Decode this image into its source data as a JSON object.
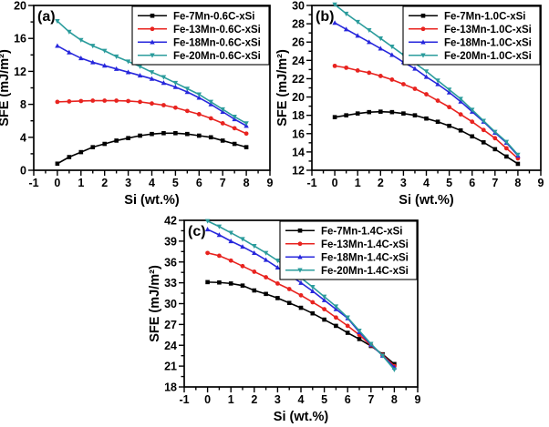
{
  "figure": {
    "background": "#ffffff",
    "description_labels": {
      "xlabel": "Si (wt.%)",
      "ylabel": "SFE (mJ/m²)"
    }
  },
  "colors": {
    "series1": "#000000",
    "series2": "#e8231f",
    "series3": "#2727dc",
    "series4": "#2b9c9c"
  },
  "chart_data": [
    {
      "type": "line",
      "panel_label": "(a)",
      "xlabel": "Si (wt.%)",
      "ylabel": "SFE (mJ/m²)",
      "xlim": [
        -1,
        9
      ],
      "ylim": [
        0,
        20
      ],
      "xtick_step": 1,
      "xminor_step": 0.5,
      "ytick_step": 4,
      "yminor_step": 2,
      "grid": false,
      "legend_position": "top-right",
      "x": [
        0,
        0.5,
        1,
        1.5,
        2,
        2.5,
        3,
        3.5,
        4,
        4.5,
        5,
        5.5,
        6,
        6.5,
        7,
        7.5,
        8
      ],
      "series": [
        {
          "name": "Fe-7Mn-0.6C-xSi",
          "color": "#000000",
          "marker": "square",
          "values": [
            0.8,
            1.6,
            2.2,
            2.8,
            3.2,
            3.6,
            3.9,
            4.2,
            4.4,
            4.5,
            4.5,
            4.4,
            4.2,
            4.0,
            3.6,
            3.2,
            2.8
          ]
        },
        {
          "name": "Fe-13Mn-0.6C-xSi",
          "color": "#e8231f",
          "marker": "circle",
          "values": [
            8.3,
            8.35,
            8.4,
            8.45,
            8.45,
            8.45,
            8.4,
            8.3,
            8.1,
            7.9,
            7.6,
            7.2,
            6.8,
            6.3,
            5.7,
            5.1,
            4.45
          ]
        },
        {
          "name": "Fe-18Mn-0.6C-xSi",
          "color": "#2727dc",
          "marker": "triangle-up",
          "values": [
            15.1,
            14.3,
            13.6,
            13.1,
            12.7,
            12.3,
            11.9,
            11.5,
            11.1,
            10.6,
            10.1,
            9.5,
            8.8,
            8.0,
            7.1,
            6.2,
            5.4
          ]
        },
        {
          "name": "Fe-20Mn-0.6C-xSi",
          "color": "#2b9c9c",
          "marker": "triangle-down",
          "values": [
            18.1,
            16.8,
            15.8,
            15.1,
            14.5,
            13.8,
            13.2,
            12.6,
            11.9,
            11.3,
            10.6,
            9.9,
            9.2,
            8.3,
            7.4,
            6.5,
            5.7
          ]
        }
      ]
    },
    {
      "type": "line",
      "panel_label": "(b)",
      "xlabel": "Si (wt.%)",
      "ylabel": "SFE (mJ/m²)",
      "xlim": [
        -1,
        9
      ],
      "ylim": [
        12,
        30
      ],
      "xtick_step": 1,
      "xminor_step": 0.5,
      "ytick_step": 2,
      "yminor_step": 1,
      "grid": false,
      "legend_position": "top-right",
      "x": [
        0,
        0.5,
        1,
        1.5,
        2,
        2.5,
        3,
        3.5,
        4,
        4.5,
        5,
        5.5,
        6,
        6.5,
        7,
        7.5,
        8
      ],
      "series": [
        {
          "name": "Fe-7Mn-1.0C-xSi",
          "color": "#000000",
          "marker": "square",
          "values": [
            17.8,
            18.0,
            18.2,
            18.35,
            18.4,
            18.35,
            18.2,
            18.0,
            17.65,
            17.3,
            16.85,
            16.35,
            15.7,
            15.05,
            14.3,
            13.5,
            12.7
          ]
        },
        {
          "name": "Fe-13Mn-1.0C-xSi",
          "color": "#e8231f",
          "marker": "circle",
          "values": [
            23.4,
            23.2,
            22.9,
            22.65,
            22.3,
            21.9,
            21.4,
            20.9,
            20.3,
            19.6,
            18.9,
            18.1,
            17.3,
            16.4,
            15.5,
            14.4,
            13.3
          ]
        },
        {
          "name": "Fe-18Mn-1.0C-xSi",
          "color": "#2727dc",
          "marker": "triangle-up",
          "values": [
            28.1,
            27.4,
            26.7,
            26.0,
            25.3,
            24.6,
            23.8,
            23.1,
            22.2,
            21.4,
            20.5,
            19.5,
            18.4,
            17.3,
            16.1,
            15.0,
            13.6
          ]
        },
        {
          "name": "Fe-20Mn-1.0C-xSi",
          "color": "#2b9c9c",
          "marker": "triangle-down",
          "values": [
            30.1,
            29.1,
            28.2,
            27.3,
            26.4,
            25.5,
            24.6,
            23.7,
            22.8,
            21.8,
            20.8,
            19.8,
            18.6,
            17.4,
            16.2,
            15.1,
            13.7
          ]
        }
      ]
    },
    {
      "type": "line",
      "panel_label": "(c)",
      "xlabel": "Si (wt.%)",
      "ylabel": "SFE (mJ/m²)",
      "xlim": [
        -1,
        9
      ],
      "ylim": [
        18,
        42
      ],
      "xtick_step": 1,
      "xminor_step": 0.5,
      "ytick_step": 3,
      "yminor_step": 1.5,
      "grid": false,
      "legend_position": "top-right",
      "x": [
        0,
        0.5,
        1,
        1.5,
        2,
        2.5,
        3,
        3.5,
        4,
        4.5,
        5,
        5.5,
        6,
        6.5,
        7,
        7.5,
        8
      ],
      "series": [
        {
          "name": "Fe-7Mn-1.4C-xSi",
          "color": "#000000",
          "marker": "square",
          "values": [
            33.1,
            33.05,
            32.9,
            32.6,
            31.9,
            31.4,
            30.8,
            30.1,
            29.4,
            28.6,
            27.7,
            26.8,
            25.8,
            24.9,
            23.9,
            22.7,
            21.3
          ]
        },
        {
          "name": "Fe-13Mn-1.4C-xSi",
          "color": "#e8231f",
          "marker": "circle",
          "values": [
            37.3,
            36.9,
            36.2,
            35.4,
            34.6,
            33.8,
            32.9,
            32.1,
            31.2,
            30.2,
            29.2,
            28.0,
            26.8,
            25.5,
            24.0,
            22.6,
            21.0
          ]
        },
        {
          "name": "Fe-18Mn-1.4C-xSi",
          "color": "#2727dc",
          "marker": "triangle-up",
          "values": [
            40.7,
            39.9,
            39.0,
            38.2,
            37.3,
            36.3,
            35.2,
            34.1,
            33.0,
            31.8,
            30.5,
            29.2,
            27.9,
            25.9,
            24.1,
            22.5,
            20.8
          ]
        },
        {
          "name": "Fe-20Mn-1.4C-xSi",
          "color": "#2b9c9c",
          "marker": "triangle-down",
          "values": [
            41.9,
            41.1,
            40.2,
            39.3,
            38.3,
            37.3,
            36.2,
            35.0,
            33.7,
            32.4,
            31.0,
            29.6,
            28.0,
            26.1,
            24.2,
            22.5,
            20.5
          ]
        }
      ]
    }
  ]
}
